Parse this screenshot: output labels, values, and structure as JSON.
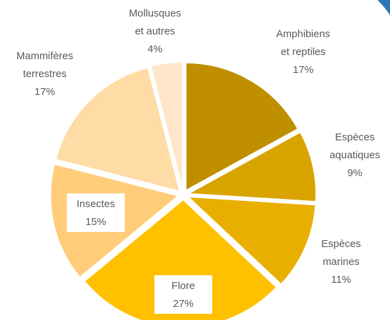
{
  "chart_data": {
    "type": "pie",
    "categories": [
      "Amphibiens\net reptiles",
      "Espèces\naquatiques",
      "Espèces\nmarines",
      "Flore",
      "Insectes",
      "Mammifères\nterrestres",
      "Mollusques\net autres"
    ],
    "values": [
      17,
      9,
      11,
      27,
      15,
      17,
      4
    ],
    "value_labels": [
      "17%",
      "9%",
      "11%",
      "27%",
      "15%",
      "17%",
      "4%"
    ],
    "colors": [
      "#bf8f00",
      "#d9a300",
      "#e8af00",
      "#ffc000",
      "#ffcc7a",
      "#ffdba6",
      "#ffe6c8"
    ]
  }
}
